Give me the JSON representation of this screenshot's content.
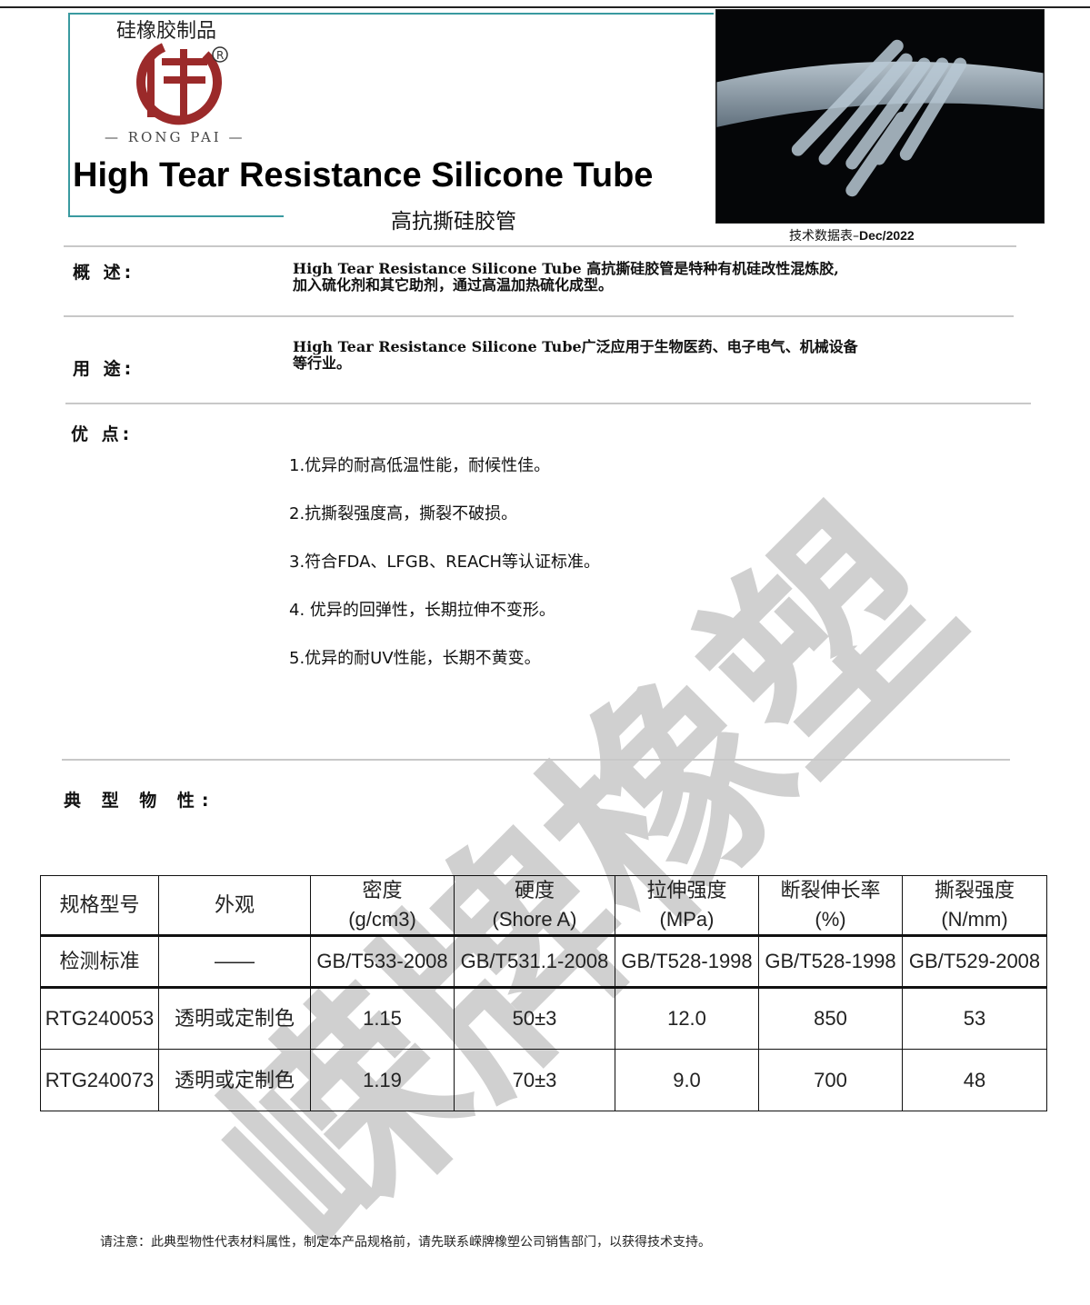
{
  "header": {
    "brand_cn": "硅橡胶制品",
    "brand_en": "— RONG PAI —",
    "title": "High Tear Resistance Silicone Tube",
    "subtitle": "高抗撕硅胶管",
    "datasheet_label": "技术数据表–",
    "datasheet_date": "Dec/2022"
  },
  "watermark": "嵘牌橡塑",
  "overview": {
    "label": "概 述:",
    "text1": "High Tear Resistance Silicone Tube 高抗撕硅胶管是特种有机硅改性混炼胶,",
    "text2": "加入硫化剂和其它助剂，通过高温加热硫化成型。"
  },
  "usage": {
    "label": "用 途:",
    "text1": "High Tear Resistance Silicone Tube广泛应用于生物医药、电子电气、机械设备",
    "text2": "等行业。"
  },
  "advantages": {
    "label": "优 点:",
    "items": [
      "1.优异的耐高低温性能，耐候性佳。",
      "2.抗撕裂强度高，撕裂不破损。",
      "3.符合FDA、LFGB、REACH等认证标准。",
      "4. 优异的回弹性，长期拉伸不变形。",
      "5.优异的耐UV性能，长期不黄变。"
    ]
  },
  "properties": {
    "label": "典 型 物 性:",
    "headers": [
      [
        "规格型号",
        ""
      ],
      [
        "外观",
        ""
      ],
      [
        "密度",
        "(g/cm3)"
      ],
      [
        "硬度",
        "(Shore A)"
      ],
      [
        "拉伸强度",
        "(MPa)"
      ],
      [
        "断裂伸长率",
        "(%)"
      ],
      [
        "撕裂强度",
        "(N/mm)"
      ]
    ],
    "standards": [
      "检测标准",
      "——",
      "GB/T533-2008",
      "GB/T531.1-2008",
      "GB/T528-1998",
      "GB/T528-1998",
      "GB/T529-2008"
    ],
    "rows": [
      [
        "RTG240053",
        "透明或定制色",
        "1.15",
        "50±3",
        "12.0",
        "850",
        "53"
      ],
      [
        "RTG240073",
        "透明或定制色",
        "1.19",
        "70±3",
        "9.0",
        "700",
        "48"
      ]
    ]
  },
  "footer_note": "请注意：此典型物性代表材料属性，制定本产品规格前，请先联系嵘牌橡塑公司销售部门，以获得技术支持。",
  "colors": {
    "frame": "#3a9aa0",
    "logo": "#9b2a2a"
  }
}
